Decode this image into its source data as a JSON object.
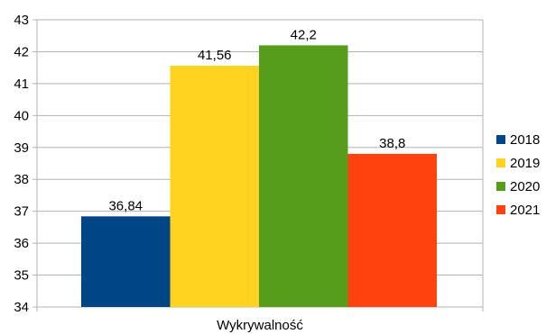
{
  "chart_data": {
    "type": "bar",
    "categories": [
      "Wykrywalność"
    ],
    "series": [
      {
        "name": "2018",
        "value": 36.84,
        "label": "36,84",
        "color": "#004586"
      },
      {
        "name": "2019",
        "value": 41.56,
        "label": "41,56",
        "color": "#ffd320"
      },
      {
        "name": "2020",
        "value": 42.2,
        "label": "42,2",
        "color": "#579d1c"
      },
      {
        "name": "2021",
        "value": 38.8,
        "label": "38,8",
        "color": "#ff420e"
      }
    ],
    "ylim": [
      34,
      43
    ],
    "ytick_labels": [
      "34",
      "35",
      "36",
      "37",
      "38",
      "39",
      "40",
      "41",
      "42",
      "43"
    ],
    "grid": true,
    "legend_position": "right",
    "title": "",
    "xlabel": "",
    "ylabel": ""
  }
}
